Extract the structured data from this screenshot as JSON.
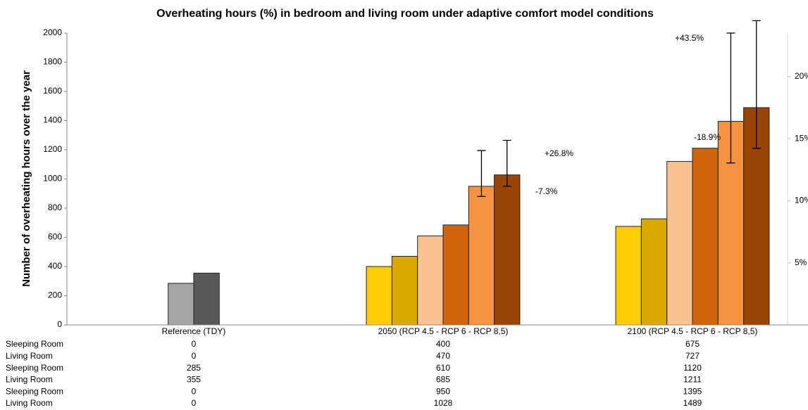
{
  "chart_data": {
    "type": "bar",
    "title": "Overheating hours (%) in bedroom and living room under adaptive comfort model conditions",
    "y_label": "Number of overheating hours over the year",
    "categories": [
      "Reference (TDY)",
      "2050 (RCP 4.5 - RCP 6 - RCP 8,5)",
      "2100 (RCP 4.5 - RCP 6 - RCP 8,5)"
    ],
    "series": [
      {
        "name": "Sleeping Room",
        "colors": [
          "#ffcc00",
          "#ffcc00",
          "#ffcc00"
        ],
        "values": [
          0,
          400,
          675
        ]
      },
      {
        "name": "Living Room",
        "colors": [
          "#dba800",
          "#dba800",
          "#dba800"
        ],
        "values": [
          0,
          470,
          727
        ]
      },
      {
        "name": "Sleeping Room",
        "colors": [
          "#a6a6a6",
          "#f9c291",
          "#f9c291"
        ],
        "values": [
          285,
          610,
          1120
        ]
      },
      {
        "name": "Living Room",
        "colors": [
          "#595959",
          "#d2640c",
          "#d2640c"
        ],
        "values": [
          355,
          685,
          1211
        ]
      },
      {
        "name": "Sleeping Room",
        "colors": [
          "#f59342",
          "#f59342",
          "#f59342"
        ],
        "values": [
          0,
          950,
          1395
        ],
        "error_minus": [
          null,
          70,
          285
        ],
        "error_plus": [
          null,
          245,
          605
        ]
      },
      {
        "name": "Living Room",
        "colors": [
          "#9a4506",
          "#9a4506",
          "#9a4506"
        ],
        "values": [
          0,
          1028,
          1489
        ],
        "error_minus": [
          null,
          78,
          279
        ],
        "error_plus": [
          null,
          237,
          596
        ]
      }
    ],
    "ylim": [
      0,
      2000
    ],
    "yticks": [
      0,
      200,
      400,
      600,
      800,
      1000,
      1200,
      1400,
      1600,
      1800,
      2000
    ],
    "y2lim": [
      0,
      23.5
    ],
    "y2ticks": [
      {
        "value": 5,
        "label": "5%"
      },
      {
        "value": 10,
        "label": "10%"
      },
      {
        "value": 15,
        "label": "15%"
      },
      {
        "value": 20,
        "label": "20%"
      }
    ],
    "annotations": [
      {
        "text": "+26.8%"
      },
      {
        "text": "-7.3%"
      },
      {
        "text": "+43.5%"
      },
      {
        "text": "-18.9%"
      }
    ]
  }
}
